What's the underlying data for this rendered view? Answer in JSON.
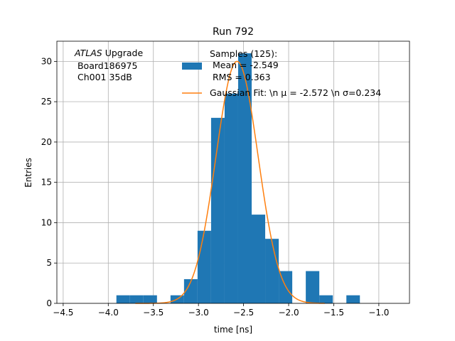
{
  "chart_data": {
    "type": "bar",
    "title": "Run 792",
    "xlabel": "time [ns]",
    "ylabel": "Entries",
    "xlim": [
      -4.5,
      -0.6
    ],
    "ylim": [
      0,
      32.5
    ],
    "xticks": [
      -4.5,
      -4.0,
      -3.5,
      -3.0,
      -2.5,
      -2.0,
      -1.5,
      -1.0
    ],
    "xtick_labels": [
      "−4.5",
      "−4.0",
      "−3.5",
      "−3.0",
      "−2.5",
      "−2.0",
      "−1.5",
      "−1.0"
    ],
    "yticks": [
      0,
      5,
      10,
      15,
      20,
      25,
      30
    ],
    "ytick_labels": [
      "0",
      "5",
      "10",
      "15",
      "20",
      "25",
      "30"
    ],
    "grid": true,
    "bin_edges": [
      -3.91,
      -3.76,
      -3.61,
      -3.46,
      -3.31,
      -3.16,
      -3.01,
      -2.86,
      -2.71,
      -2.56,
      -2.41,
      -2.26,
      -2.11,
      -1.96,
      -1.81,
      -1.66,
      -1.51,
      -1.36,
      -1.21,
      -1.06
    ],
    "counts": [
      1,
      1,
      1,
      0,
      1,
      3,
      9,
      23,
      26,
      31,
      11,
      8,
      4,
      0,
      4,
      1,
      0,
      1,
      0
    ],
    "fit": {
      "mu": -2.572,
      "sigma": 0.234,
      "amplitude": 30
    },
    "series": [
      {
        "name": "Samples (125):\n Mean = -2.549\n RMS = 0.363",
        "color": "#1f77b4"
      },
      {
        "name": "Gaussian Fit: \\n μ = -2.572 \\n σ=0.234",
        "color": "#ff7f0e"
      }
    ],
    "annotation": [
      "ATLAS Upgrade",
      " Board186975",
      " Ch001 35dB"
    ],
    "legend_position": "top-right"
  }
}
